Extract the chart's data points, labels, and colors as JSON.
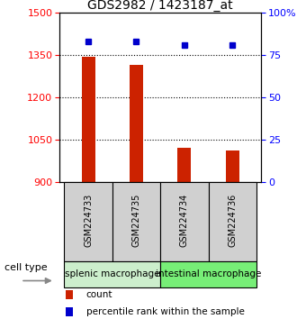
{
  "title": "GDS2982 / 1423187_at",
  "samples": [
    "GSM224733",
    "GSM224735",
    "GSM224734",
    "GSM224736"
  ],
  "counts": [
    1345,
    1315,
    1020,
    1010
  ],
  "percentile_ranks": [
    83,
    83,
    81,
    81
  ],
  "ylim_left": [
    900,
    1500
  ],
  "ylim_right": [
    0,
    100
  ],
  "yticks_left": [
    900,
    1050,
    1200,
    1350,
    1500
  ],
  "yticks_right": [
    0,
    25,
    50,
    75,
    100
  ],
  "bar_color": "#cc2200",
  "dot_color": "#0000cc",
  "bar_width": 0.28,
  "groups": [
    {
      "label": "splenic macrophage",
      "indices": [
        0,
        1
      ],
      "color": "#cceecc"
    },
    {
      "label": "intestinal macrophage",
      "indices": [
        2,
        3
      ],
      "color": "#77ee77"
    }
  ],
  "cell_type_label": "cell type",
  "legend_count_label": "count",
  "legend_pct_label": "percentile rank within the sample",
  "title_fontsize": 10,
  "tick_fontsize": 8,
  "sample_fontsize": 7,
  "group_fontsize": 7.5,
  "legend_fontsize": 7.5,
  "ct_fontsize": 8
}
